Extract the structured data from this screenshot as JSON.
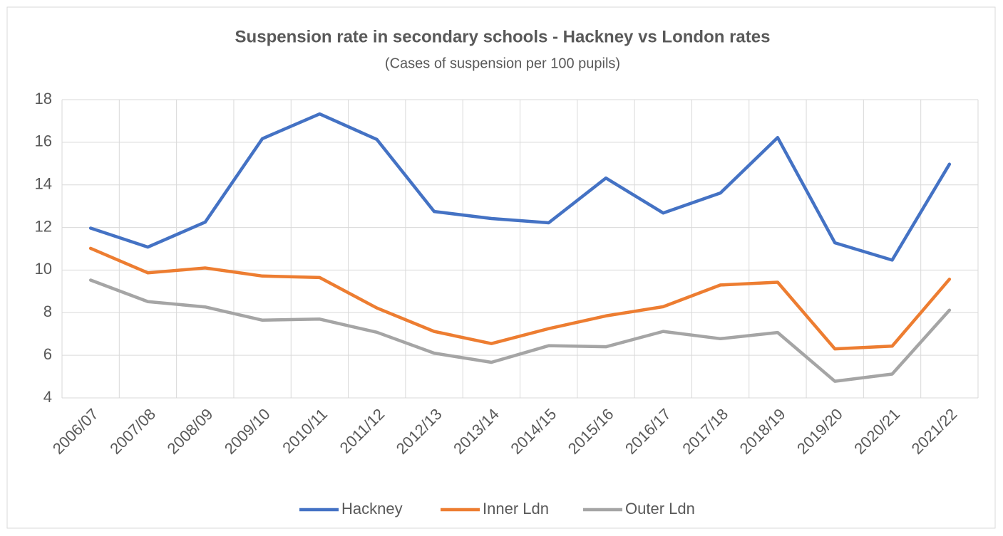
{
  "chart_data": {
    "type": "line",
    "title": "Suspension rate in secondary schools - Hackney vs London rates",
    "subtitle": "(Cases of suspension per 100 pupils)",
    "categories": [
      "2006/07",
      "2007/08",
      "2008/09",
      "2009/10",
      "2010/11",
      "2011/12",
      "2012/13",
      "2013/14",
      "2014/15",
      "2015/16",
      "2016/17",
      "2017/18",
      "2018/19",
      "2019/20",
      "2020/21",
      "2021/22"
    ],
    "series": [
      {
        "name": "Hackney",
        "color": "#4472c4",
        "values": [
          11.97,
          11.08,
          12.25,
          16.17,
          17.33,
          16.13,
          12.75,
          12.42,
          12.22,
          14.32,
          12.68,
          13.62,
          16.22,
          11.28,
          10.47,
          14.97
        ]
      },
      {
        "name": "Inner Ldn",
        "color": "#ed7d31",
        "values": [
          11.02,
          9.87,
          10.1,
          9.72,
          9.65,
          8.22,
          7.12,
          6.55,
          7.25,
          7.85,
          8.28,
          9.3,
          9.43,
          6.3,
          6.43,
          9.57
        ]
      },
      {
        "name": "Outer Ldn",
        "color": "#a5a5a5",
        "values": [
          9.53,
          8.52,
          8.27,
          7.65,
          7.7,
          7.08,
          6.1,
          5.67,
          6.45,
          6.4,
          7.12,
          6.78,
          7.07,
          4.78,
          5.12,
          8.12
        ]
      }
    ],
    "ylim": [
      4,
      18
    ],
    "yticks": [
      4,
      6,
      8,
      10,
      12,
      14,
      16,
      18
    ],
    "grid": true,
    "legend": "bottom"
  }
}
